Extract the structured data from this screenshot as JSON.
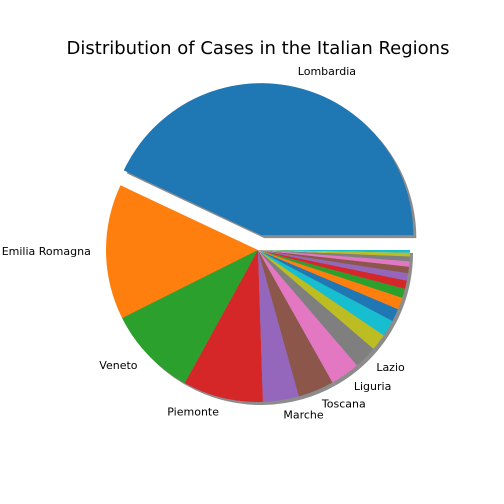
{
  "chart_data": {
    "type": "pie",
    "title": "Distribution of Cases in the Italian Regions",
    "start_angle_deg": 0,
    "direction": "counterclockwise",
    "exploded": [
      "Lombardia"
    ],
    "shadow": true,
    "slices": [
      {
        "label": "Lombardia",
        "value": 43.9,
        "color": "#1f77b4"
      },
      {
        "label": "Emilia Romagna",
        "value": 14.7,
        "color": "#ff7f0e"
      },
      {
        "label": "Veneto",
        "value": 9.8,
        "color": "#2ca02c"
      },
      {
        "label": "Piemonte",
        "value": 8.7,
        "color": "#d62728"
      },
      {
        "label": "Marche",
        "value": 3.9,
        "color": "#9467bd"
      },
      {
        "label": "Toscana",
        "value": 3.9,
        "color": "#8c564b"
      },
      {
        "label": "Liguria",
        "value": 3.2,
        "color": "#e377c2"
      },
      {
        "label": "Lazio",
        "value": 2.5,
        "color": "#7f7f7f"
      },
      {
        "label": "",
        "value": 1.8,
        "color": "#bcbd22"
      },
      {
        "label": "",
        "value": 1.8,
        "color": "#17becf"
      },
      {
        "label": "",
        "value": 1.4,
        "color": "#1f77b4"
      },
      {
        "label": "",
        "value": 1.3,
        "color": "#ff7f0e"
      },
      {
        "label": "",
        "value": 1.0,
        "color": "#2ca02c"
      },
      {
        "label": "",
        "value": 0.9,
        "color": "#d62728"
      },
      {
        "label": "",
        "value": 0.8,
        "color": "#9467bd"
      },
      {
        "label": "",
        "value": 0.7,
        "color": "#8c564b"
      },
      {
        "label": "",
        "value": 0.6,
        "color": "#e377c2"
      },
      {
        "label": "",
        "value": 0.5,
        "color": "#7f7f7f"
      },
      {
        "label": "",
        "value": 0.4,
        "color": "#bcbd22"
      },
      {
        "label": "",
        "value": 0.3,
        "color": "#17becf"
      }
    ]
  }
}
